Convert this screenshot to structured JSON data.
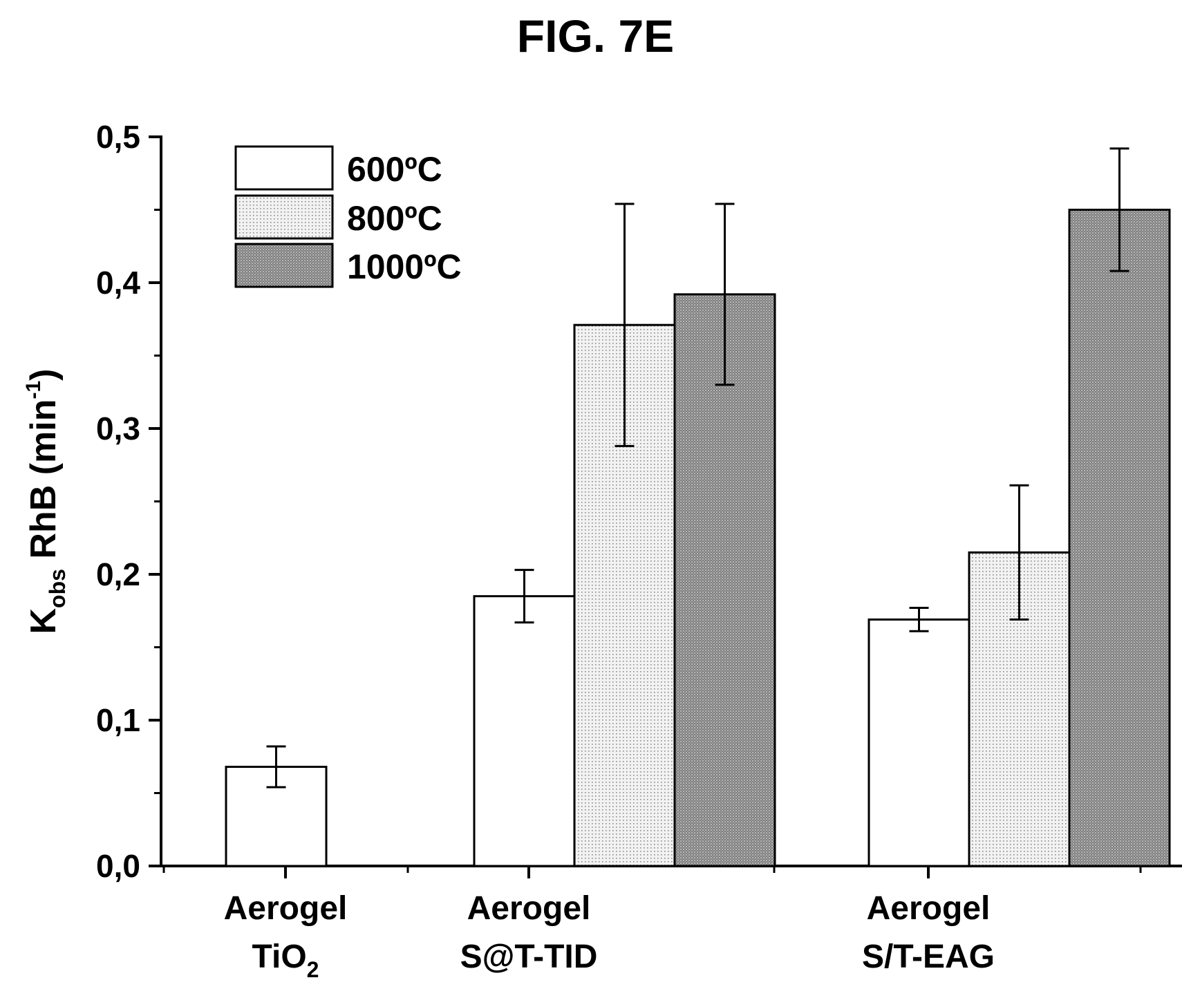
{
  "figure_title": "FIG. 7E",
  "chart_data": {
    "type": "bar",
    "title": "FIG. 7E",
    "xlabel": "",
    "ylabel": "K_obs RhB (min^-1)",
    "ylabel_parts": {
      "main": "K",
      "sub": "obs",
      "rest": " RhB (min",
      "sup": "-1",
      "close": ")"
    },
    "ylim": [
      0,
      0.5
    ],
    "yticks": [
      "0,0",
      "0,1",
      "0,2",
      "0,3",
      "0,4",
      "0,5"
    ],
    "ytick_values": [
      0,
      0.1,
      0.2,
      0.3,
      0.4,
      0.5
    ],
    "categories": [
      "Aerogel TiO2",
      "Aerogel S@T-TID",
      "Aerogel S/T-EAG"
    ],
    "category_labels": [
      {
        "line1": "Aerogel",
        "line2": "TiO",
        "sub": "2"
      },
      {
        "line1": "Aerogel",
        "line2": "S@T-TID",
        "sub": ""
      },
      {
        "line1": "Aerogel",
        "line2": "S/T-EAG",
        "sub": ""
      }
    ],
    "series": [
      {
        "name": "600ºC",
        "fill": "white",
        "values": [
          0.068,
          0.185,
          0.169
        ],
        "errors": [
          0.014,
          0.018,
          0.008
        ]
      },
      {
        "name": "800ºC",
        "fill": "dotted-light",
        "values": [
          null,
          0.371,
          0.215
        ],
        "errors": [
          null,
          0.083,
          0.046
        ]
      },
      {
        "name": "1000ºC",
        "fill": "dotted-dark",
        "values": [
          null,
          0.392,
          0.45
        ],
        "errors": [
          null,
          0.062,
          0.042
        ]
      }
    ],
    "legend_placement": "top-left",
    "grid": false
  }
}
